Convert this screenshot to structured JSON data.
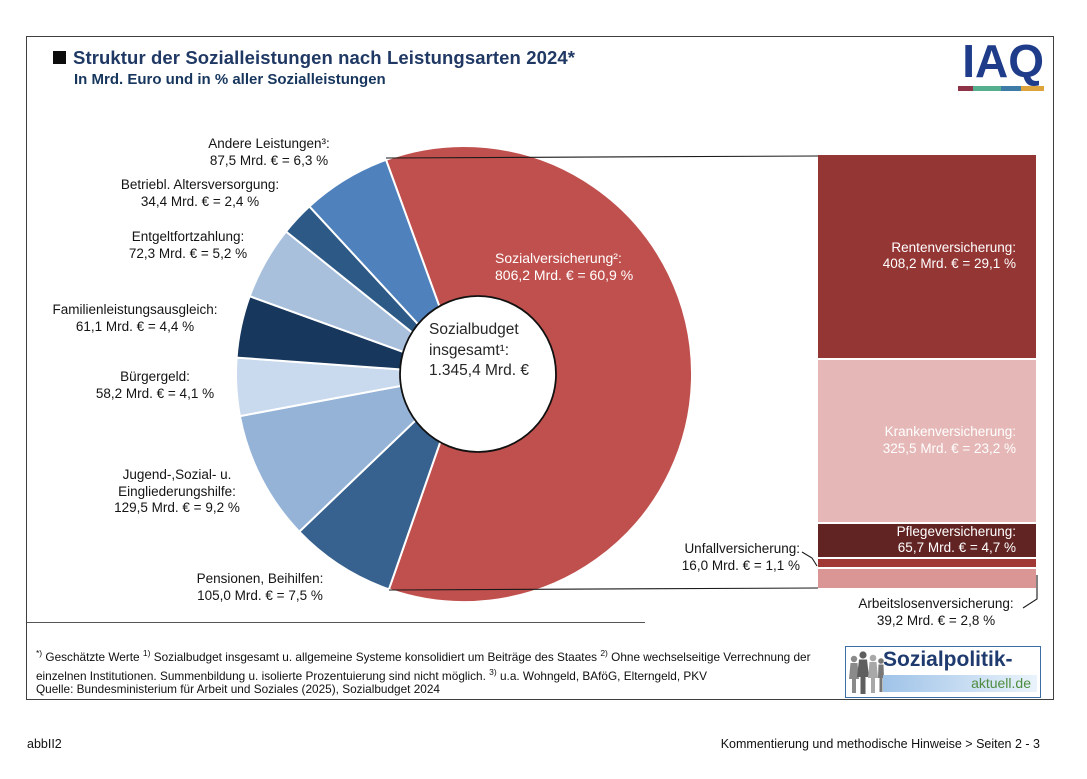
{
  "header": {
    "title": "Struktur der Sozialleistungen nach Leistungsarten 2024*",
    "subtitle": "In Mrd. Euro und in % aller Sozialleistungen"
  },
  "logos": {
    "iaq": {
      "text": "IAQ",
      "bar_colors": [
        "#8E3347",
        "#55AE8E",
        "#3E7CA8",
        "#DDA43E"
      ],
      "text_color": "#1F3C8A"
    },
    "sozialpolitik": {
      "line1": "Sozialpolitik-",
      "line2": "aktuell.de",
      "line1_color": "#1E3A6E",
      "line2_color": "#4E8C3F"
    }
  },
  "chart_data": {
    "type": "pie",
    "variant": "bar-of-pie-donut",
    "title": "Struktur der Sozialleistungen nach Leistungsarten 2024*",
    "subtitle": "In Mrd. Euro und in % aller Sozialleistungen",
    "unit": "Mrd. Euro",
    "start_angle_deg": -20,
    "center_total": {
      "value": 1345.4,
      "label_lines": [
        "Sozialbudget",
        "insgesamt¹:",
        "1.345,4 Mrd. €"
      ]
    },
    "slices": [
      {
        "id": "sozialversicherung",
        "name": "Sozialversicherung",
        "value": 806.2,
        "percent": 60.9,
        "color": "#C0504D",
        "label_lines": [
          "Sozialversicherung²:",
          "806,2 Mrd. € = 60,9 %"
        ]
      },
      {
        "id": "pensionen",
        "name": "Pensionen, Beihilfen",
        "value": 105.0,
        "percent": 7.5,
        "color": "#37618E",
        "label_lines": [
          "Pensionen, Beihilfen:",
          "105,0 Mrd. € = 7,5 %"
        ]
      },
      {
        "id": "jugend-sozial-eingliederungshilfe",
        "name": "Jugend-, Sozial- u. Eingliederungshilfe",
        "value": 129.5,
        "percent": 9.2,
        "color": "#95B3D7",
        "label_lines": [
          "Jugend-,Sozial- u.",
          "Eingliederungshilfe:",
          "129,5 Mrd. € = 9,2 %"
        ]
      },
      {
        "id": "buergergeld",
        "name": "Bürgergeld",
        "value": 58.2,
        "percent": 4.1,
        "color": "#C9D9EE",
        "label_lines": [
          "Bürgergeld:",
          "58,2 Mrd. € = 4,1 %"
        ]
      },
      {
        "id": "familienleistungsausgleich",
        "name": "Familienleistungsausgleich",
        "value": 61.1,
        "percent": 4.4,
        "color": "#17375D",
        "label_lines": [
          "Familienleistungsausgleich:",
          "61,1 Mrd. € = 4,4 %"
        ]
      },
      {
        "id": "entgeltfortzahlung",
        "name": "Entgeltfortzahlung",
        "value": 72.3,
        "percent": 5.2,
        "color": "#A9C0DD",
        "label_lines": [
          "Entgeltfortzahlung:",
          "72,3 Mrd. € = 5,2 %"
        ]
      },
      {
        "id": "betriebliche-altersversorgung",
        "name": "Betriebl. Altersversorgung",
        "value": 34.4,
        "percent": 2.4,
        "color": "#2C5985",
        "label_lines": [
          "Betriebl. Altersversorgung:",
          "34,4 Mrd. € = 2,4 %"
        ]
      },
      {
        "id": "andere-leistungen",
        "name": "Andere Leistungen",
        "value": 87.5,
        "percent": 6.3,
        "color": "#4F81BD",
        "label_lines": [
          "Andere Leistungen³:",
          "87,5 Mrd. € = 6,3 %"
        ]
      }
    ],
    "bar_of_pie": {
      "parent": "Sozialversicherung",
      "segments": [
        {
          "id": "rentenversicherung",
          "name": "Rentenversicherung",
          "value": 408.2,
          "percent": 29.1,
          "color": "#943634",
          "label_inside": true,
          "label_lines": [
            "Rentenversicherung:",
            "408,2 Mrd. € = 29,1 %"
          ]
        },
        {
          "id": "krankenversicherung",
          "name": "Krankenversicherung",
          "value": 325.5,
          "percent": 23.2,
          "color": "#E5B8B7",
          "label_inside": true,
          "label_lines": [
            "Krankenversicherung:",
            "325,5 Mrd. € = 23,2 %"
          ]
        },
        {
          "id": "pflegeversicherung",
          "name": "Pflegeversicherung",
          "value": 65.7,
          "percent": 4.7,
          "color": "#622423",
          "label_inside": true,
          "label_lines": [
            "Pflegeversicherung:",
            "65,7 Mrd. € = 4,7 %"
          ]
        },
        {
          "id": "unfallversicherung",
          "name": "Unfallversicherung",
          "value": 16.0,
          "percent": 1.1,
          "color": "#A03936",
          "label_inside": false,
          "label_lines": [
            "Unfallversicherung:",
            "16,0 Mrd. € = 1,1 %"
          ]
        },
        {
          "id": "arbeitslosenversicherung",
          "name": "Arbeitslosenversicherung",
          "value": 39.2,
          "percent": 2.8,
          "color": "#D99694",
          "label_inside": false,
          "label_lines": [
            "Arbeitslosenversicherung:",
            "39,2 Mrd. € = 2,8 %"
          ]
        }
      ]
    }
  },
  "footnotes": {
    "parts": [
      {
        "marker": "*)",
        "text": " Geschätzte Werte "
      },
      {
        "marker": "1)",
        "text": " Sozialbudget insgesamt u. allgemeine Systeme konsolidiert um Beiträge des Staates "
      },
      {
        "marker": "2)",
        "text": " Ohne wechselseitige Verrechnung der einzelnen Institutionen. Summenbildung u. isolierte Prozentuierung sind nicht möglich. "
      },
      {
        "marker": "3)",
        "text": " u.a. Wohngeld, BAföG, Elterngeld, PKV"
      }
    ]
  },
  "source": "Quelle: Bundesministerium für Arbeit und Soziales (2025), Sozialbudget 2024",
  "footer": {
    "left": "abbII2",
    "right": "Kommentierung und methodische Hinweise > Seiten 2 - 3"
  }
}
